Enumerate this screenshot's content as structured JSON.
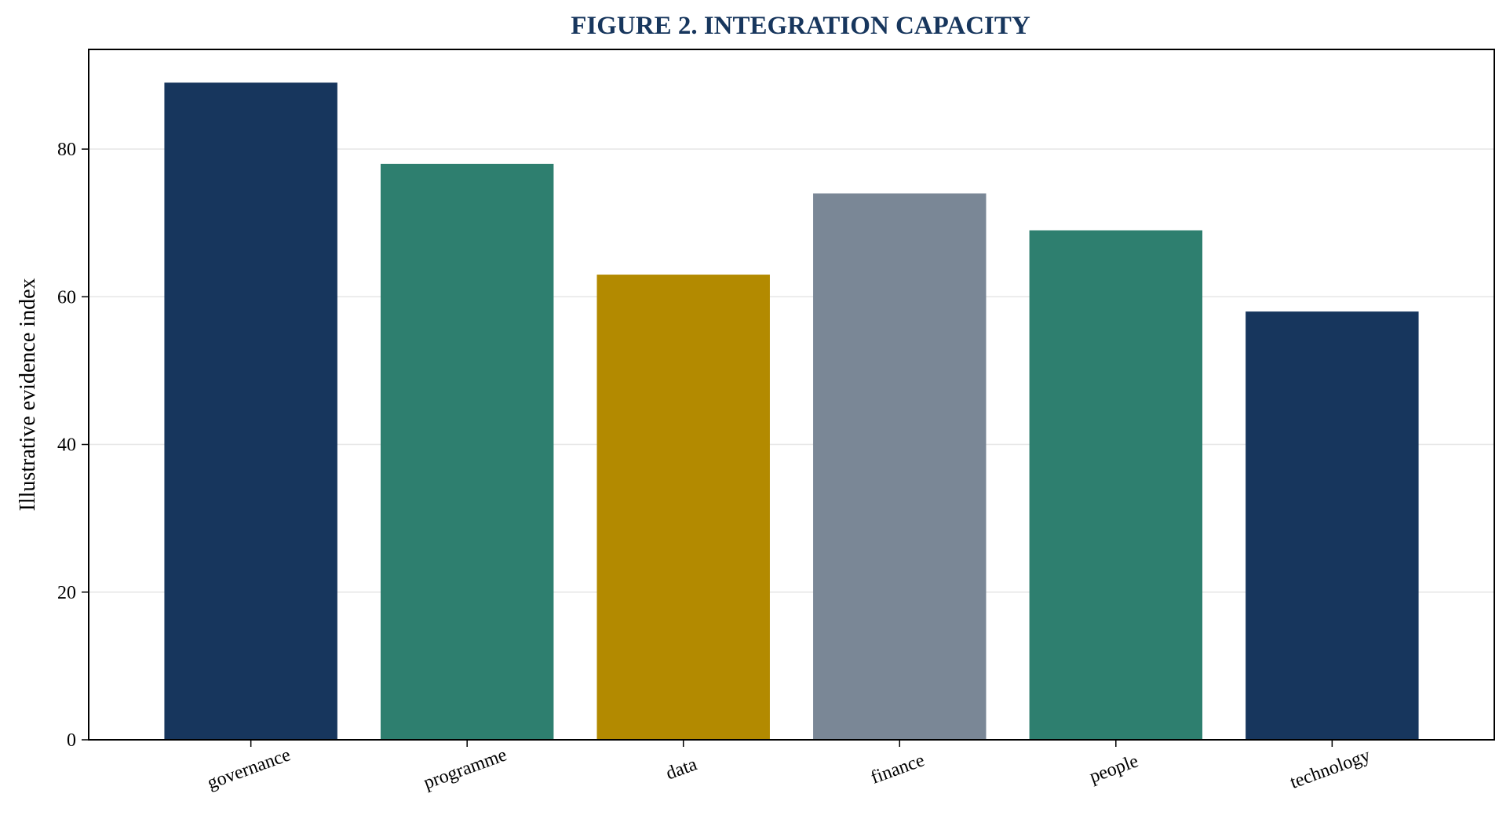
{
  "chart_data": {
    "type": "bar",
    "title": "FIGURE 2. INTEGRATION CAPACITY",
    "xlabel": "",
    "ylabel": "Illustrative evidence index",
    "categories": [
      "governance",
      "programme",
      "data",
      "finance",
      "people",
      "technology"
    ],
    "values": [
      89,
      78,
      63,
      74,
      69,
      58
    ],
    "bar_colors": [
      "#17365d",
      "#2e7f6f",
      "#b38a00",
      "#7a8796",
      "#2e7f6f",
      "#17365d"
    ],
    "ylim": [
      0,
      93.5
    ],
    "yticks": [
      0,
      20,
      40,
      60,
      80
    ],
    "grid": "horizontal",
    "legend": "none"
  }
}
